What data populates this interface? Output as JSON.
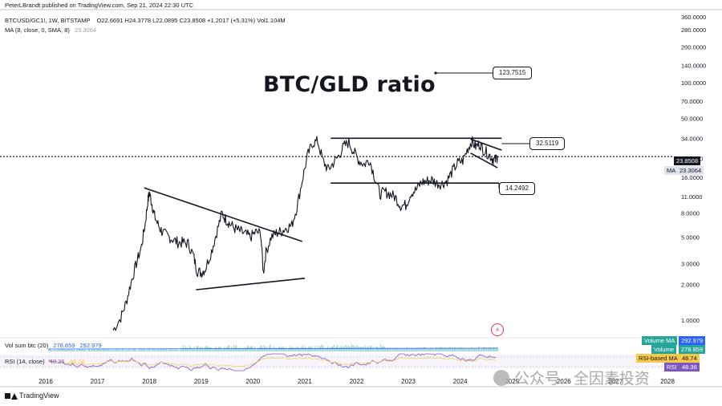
{
  "header": {
    "publish_line": "PeterLBrandt published on TradingView.com, Sep 21, 2024 22:30 UTC",
    "symbol": "BTCUSD/GC1!, 1W, BITSTAMP",
    "ohlc": "O22.6691  H24.3778  L22.0895  C23.8508  +1.2017 (+5.31%)  Vol1.104M",
    "ma_label": "MA (8, close, 0, SMA, 8)",
    "ma_value": "23.3064"
  },
  "title": "BTC/GLD ratio",
  "annotations": {
    "price_123": "123.7515",
    "price_32": "32.5119",
    "price_14": "14.2492"
  },
  "last_price_tag": "23.8508",
  "ma_tag_label": "MA",
  "ma_tag_value": "23.3064",
  "volume_pane": {
    "label": "Vol sum btc (20)",
    "v1": "278.859",
    "v2": "292.979",
    "tag_volma_label": "Volume MA",
    "tag_volma_value": "292.979",
    "tag_vol_label": "Volume",
    "tag_vol_value": "278.859"
  },
  "rsi_pane": {
    "label": "RSI (14, close)",
    "v1": "48.36",
    "v2": "48.74",
    "tag_rsima_label": "RSI-based MA",
    "tag_rsima_value": "48.74",
    "tag_rsi_label": "RSI",
    "tag_rsi_value": "48.36"
  },
  "footer": {
    "brand": "TradingView"
  },
  "watermark": "公众号 · 全因素投资",
  "colors": {
    "bull": "#089981",
    "bear": "#f23645",
    "volume": "#26a69a",
    "rsi": "#7e57c2",
    "blue": "#2962ff"
  },
  "chart_data": {
    "type": "line",
    "scale": "log",
    "x_axis_labels": [
      "2016",
      "2017",
      "2018",
      "2019",
      "2020",
      "2021",
      "2022",
      "2023",
      "2024",
      "2025",
      "2026",
      "2027",
      "2028"
    ],
    "y_axis_labels": [
      "360.0000",
      "280.0000",
      "200.0000",
      "140.0000",
      "100.0000",
      "70.0000",
      "50.0000",
      "34.0000",
      "23.0000",
      "16.0000",
      "11.0000",
      "8.0000",
      "5.0000",
      "3.0000",
      "2.0000",
      "1.0000"
    ],
    "y_axis_values": [
      360,
      280,
      200,
      140,
      100,
      70,
      50,
      34,
      23,
      16,
      11,
      8,
      5,
      3,
      2,
      1
    ],
    "ylim": [
      0.72,
      400
    ],
    "series": [
      {
        "points": [
          [
            2017.3,
            0.82
          ],
          [
            2017.45,
            1.05
          ],
          [
            2017.55,
            1.4
          ],
          [
            2017.65,
            2.1
          ],
          [
            2017.75,
            3.0
          ],
          [
            2017.85,
            4.2
          ],
          [
            2017.92,
            6.5
          ],
          [
            2017.97,
            10.0
          ],
          [
            2018.0,
            11.8
          ],
          [
            2018.05,
            9.5
          ],
          [
            2018.1,
            7.5
          ],
          [
            2018.18,
            6.2
          ],
          [
            2018.25,
            5.5
          ],
          [
            2018.35,
            5.1
          ],
          [
            2018.45,
            4.8
          ],
          [
            2018.55,
            4.5
          ],
          [
            2018.65,
            4.5
          ],
          [
            2018.75,
            4.4
          ],
          [
            2018.85,
            3.5
          ],
          [
            2018.92,
            2.6
          ],
          [
            2019.0,
            2.5
          ],
          [
            2019.08,
            2.7
          ],
          [
            2019.2,
            3.8
          ],
          [
            2019.3,
            5.5
          ],
          [
            2019.4,
            7.9
          ],
          [
            2019.48,
            7.0
          ],
          [
            2019.55,
            6.5
          ],
          [
            2019.65,
            5.9
          ],
          [
            2019.75,
            5.6
          ],
          [
            2019.85,
            5.3
          ],
          [
            2019.95,
            5.0
          ],
          [
            2020.05,
            5.5
          ],
          [
            2020.15,
            5.4
          ],
          [
            2020.2,
            2.5
          ],
          [
            2020.25,
            3.7
          ],
          [
            2020.35,
            5.0
          ],
          [
            2020.45,
            5.4
          ],
          [
            2020.55,
            5.6
          ],
          [
            2020.65,
            6.0
          ],
          [
            2020.75,
            6.3
          ],
          [
            2020.85,
            9.0
          ],
          [
            2020.95,
            15.0
          ],
          [
            2021.05,
            24.0
          ],
          [
            2021.15,
            31.0
          ],
          [
            2021.25,
            32.0
          ],
          [
            2021.35,
            22.0
          ],
          [
            2021.45,
            18.5
          ],
          [
            2021.55,
            21.0
          ],
          [
            2021.65,
            24.0
          ],
          [
            2021.75,
            29.0
          ],
          [
            2021.85,
            31.5
          ],
          [
            2021.95,
            26.0
          ],
          [
            2022.05,
            22.0
          ],
          [
            2022.15,
            20.5
          ],
          [
            2022.25,
            22.5
          ],
          [
            2022.35,
            16.0
          ],
          [
            2022.45,
            11.5
          ],
          [
            2022.55,
            12.0
          ],
          [
            2022.65,
            11.5
          ],
          [
            2022.75,
            10.8
          ],
          [
            2022.85,
            9.2
          ],
          [
            2022.95,
            9.3
          ],
          [
            2023.05,
            11.8
          ],
          [
            2023.15,
            12.5
          ],
          [
            2023.25,
            14.5
          ],
          [
            2023.35,
            14.8
          ],
          [
            2023.45,
            15.2
          ],
          [
            2023.55,
            14.2
          ],
          [
            2023.65,
            14.1
          ],
          [
            2023.75,
            15.0
          ],
          [
            2023.85,
            18.0
          ],
          [
            2023.95,
            21.0
          ],
          [
            2024.05,
            22.0
          ],
          [
            2024.15,
            28.0
          ],
          [
            2024.22,
            32.0
          ],
          [
            2024.3,
            29.0
          ],
          [
            2024.38,
            30.5
          ],
          [
            2024.45,
            27.0
          ],
          [
            2024.55,
            25.0
          ],
          [
            2024.62,
            23.0
          ],
          [
            2024.67,
            22.2
          ],
          [
            2024.72,
            23.85
          ]
        ]
      }
    ],
    "trendlines": [
      {
        "from": [
          2017.9,
          13.0
        ],
        "to": [
          2020.95,
          4.6
        ]
      },
      {
        "from": [
          2018.9,
          1.8
        ],
        "to": [
          2021.0,
          2.25
        ]
      },
      {
        "from": [
          2021.5,
          34.0
        ],
        "to": [
          2024.8,
          34.0
        ]
      },
      {
        "from": [
          2021.5,
          14.25
        ],
        "to": [
          2024.75,
          14.25
        ]
      },
      {
        "from": [
          2024.2,
          33.5
        ],
        "to": [
          2024.8,
          27.0
        ]
      },
      {
        "from": [
          2024.2,
          25.5
        ],
        "to": [
          2024.72,
          19.2
        ]
      }
    ],
    "current_value": 23.8508,
    "callout_value": 123.7515
  }
}
